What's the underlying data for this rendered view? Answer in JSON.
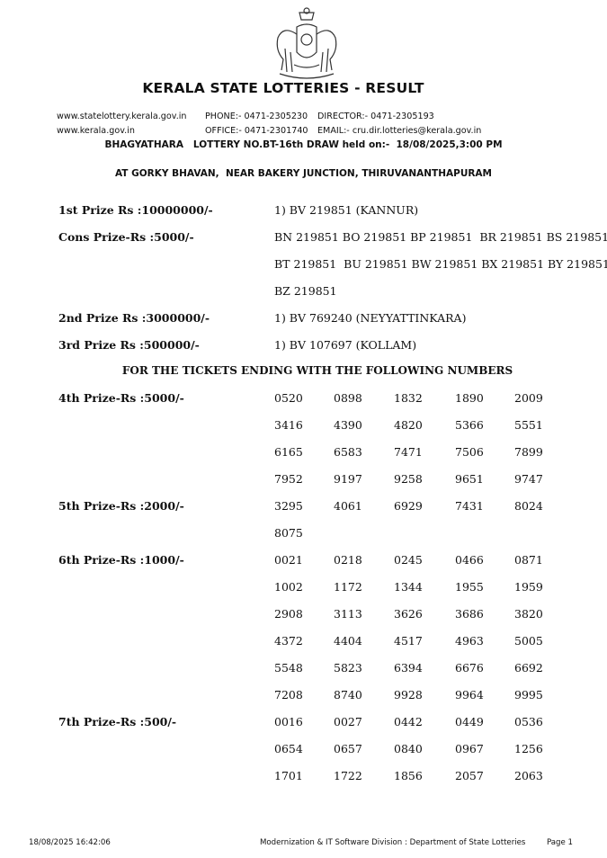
{
  "header": {
    "emblem": "Kerala Government Emblem",
    "title": "KERALA STATE LOTTERIES - RESULT",
    "website1": "www.statelottery.kerala.gov.in",
    "website2": "www.kerala.gov.in",
    "phone": "PHONE:- 0471-2305230",
    "office": "OFFICE:- 0471-2301740",
    "director": "DIRECTOR:- 0471-2305193",
    "email": "EMAIL:- cru.dir.lotteries@kerala.gov.in",
    "draw_line": "BHAGYATHARA   LOTTERY NO.BT-16th DRAW held on:-  18/08/2025,3:00 PM",
    "venue": "AT GORKY BHAVAN,  NEAR BAKERY JUNCTION, THIRUVANANTHAPURAM"
  },
  "top_prizes": [
    {
      "label": "1st Prize Rs :10000000/-",
      "lines": [
        "1) BV 219851 (KANNUR)"
      ]
    },
    {
      "label": "Cons Prize-Rs :5000/-",
      "lines": [
        "BN 219851 BO 219851 BP 219851  BR 219851 BS 219851",
        "BT 219851  BU 219851 BW 219851 BX 219851 BY 219851",
        "BZ 219851"
      ]
    },
    {
      "label": "2nd Prize Rs :3000000/-",
      "lines": [
        "1) BV 769240 (NEYYATTINKARA)"
      ]
    },
    {
      "label": "3rd Prize Rs :500000/-",
      "lines": [
        "1) BV 107697 (KOLLAM)"
      ]
    }
  ],
  "ending_heading": "FOR THE TICKETS ENDING WITH THE FOLLOWING NUMBERS",
  "ending_prizes": [
    {
      "label": "4th Prize-Rs :5000/-",
      "numbers": [
        "0520",
        "0898",
        "1832",
        "1890",
        "2009",
        "3416",
        "4390",
        "4820",
        "5366",
        "5551",
        "6165",
        "6583",
        "7471",
        "7506",
        "7899",
        "7952",
        "9197",
        "9258",
        "9651",
        "9747"
      ]
    },
    {
      "label": "5th Prize-Rs :2000/-",
      "numbers": [
        "3295",
        "4061",
        "6929",
        "7431",
        "8024",
        "8075"
      ]
    },
    {
      "label": "6th Prize-Rs :1000/-",
      "numbers": [
        "0021",
        "0218",
        "0245",
        "0466",
        "0871",
        "1002",
        "1172",
        "1344",
        "1955",
        "1959",
        "2908",
        "3113",
        "3626",
        "3686",
        "3820",
        "4372",
        "4404",
        "4517",
        "4963",
        "5005",
        "5548",
        "5823",
        "6394",
        "6676",
        "6692",
        "7208",
        "8740",
        "9928",
        "9964",
        "9995"
      ]
    },
    {
      "label": "7th Prize-Rs :500/-",
      "numbers": [
        "0016",
        "0027",
        "0442",
        "0449",
        "0536",
        "0654",
        "0657",
        "0840",
        "0967",
        "1256",
        "1701",
        "1722",
        "1856",
        "2057",
        "2063"
      ]
    }
  ],
  "footer": {
    "timestamp": "18/08/2025 16:42:06",
    "division": "Modernization & IT Software Division : Department of State Lotteries",
    "page": "Page 1"
  }
}
